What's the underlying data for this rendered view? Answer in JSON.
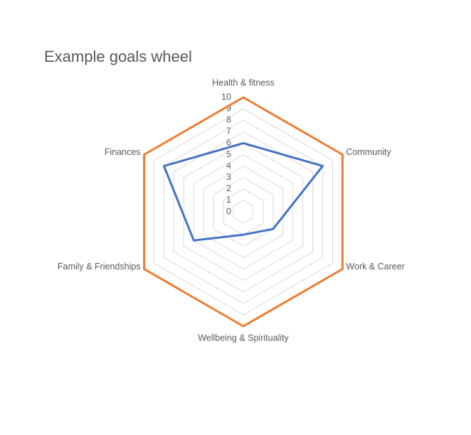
{
  "chart_data": {
    "type": "radar",
    "title": "Example goals wheel",
    "categories": [
      "Health & fitness",
      "Community",
      "Work & Career",
      "Wellbeing & Spirituality",
      "Family & Friendships",
      "Finances"
    ],
    "series": [
      {
        "color": "#ed7d31",
        "values": [
          10,
          10,
          10,
          10,
          10,
          10
        ]
      },
      {
        "color": "#4472c4",
        "values": [
          6,
          8,
          3,
          2,
          5,
          8
        ]
      }
    ],
    "ylim": [
      0,
      10
    ],
    "yticks": [
      0,
      1,
      2,
      3,
      4,
      5,
      6,
      7,
      8,
      9,
      10
    ],
    "grid": true
  }
}
